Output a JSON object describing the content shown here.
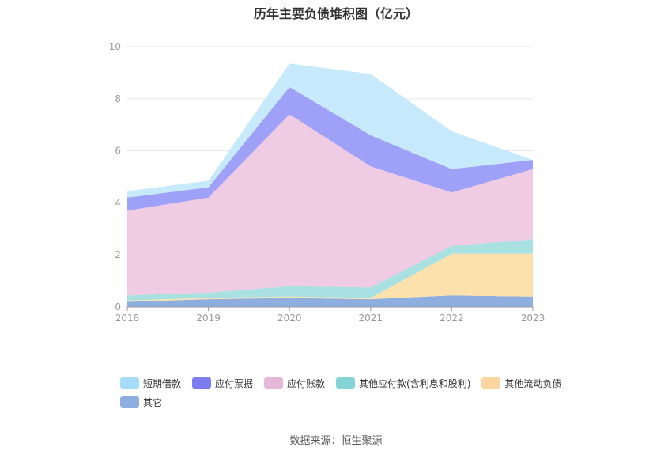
{
  "title": "历年主要负债堆积图（亿元）",
  "source": "数据来源：恒生聚源",
  "chart_data": {
    "type": "area",
    "stacked": true,
    "categories": [
      "2018",
      "2019",
      "2020",
      "2021",
      "2022",
      "2023"
    ],
    "ylim": [
      0,
      10
    ],
    "yticks": [
      "0",
      "2",
      "4",
      "6",
      "8",
      "10"
    ],
    "grid": true,
    "legend_position": "bottom",
    "series": [
      {
        "name": "其它",
        "color": "#8eaedf",
        "values": [
          0.2,
          0.3,
          0.35,
          0.3,
          0.45,
          0.4
        ]
      },
      {
        "name": "其他流动负债",
        "color": "#fde1ac",
        "values": [
          0.05,
          0.05,
          0.05,
          0.05,
          1.6,
          1.65
        ]
      },
      {
        "name": "其他应付款(含利息和股利)",
        "color": "#a9e1e2",
        "values": [
          0.2,
          0.2,
          0.4,
          0.4,
          0.3,
          0.55
        ]
      },
      {
        "name": "应付账款",
        "color": "#efcce4",
        "values": [
          3.25,
          3.65,
          6.6,
          4.65,
          2.05,
          2.7
        ]
      },
      {
        "name": "应付票据",
        "color": "#9fa0f7",
        "values": [
          0.5,
          0.4,
          1.05,
          1.2,
          0.9,
          0.35
        ]
      },
      {
        "name": "短期借款",
        "color": "#c6e9fb",
        "values": [
          0.25,
          0.25,
          0.9,
          2.35,
          1.45,
          0.0
        ]
      }
    ]
  },
  "legend": [
    {
      "label": "短期借款",
      "color": "#a5ddf8"
    },
    {
      "label": "应付票据",
      "color": "#7b7cf0"
    },
    {
      "label": "应付账款",
      "color": "#e5b8d8"
    },
    {
      "label": "其他应付款(含利息和股利)",
      "color": "#85d4d6"
    },
    {
      "label": "其他流动负债",
      "color": "#fbd6a0"
    },
    {
      "label": "其它",
      "color": "#8eaedf"
    }
  ]
}
